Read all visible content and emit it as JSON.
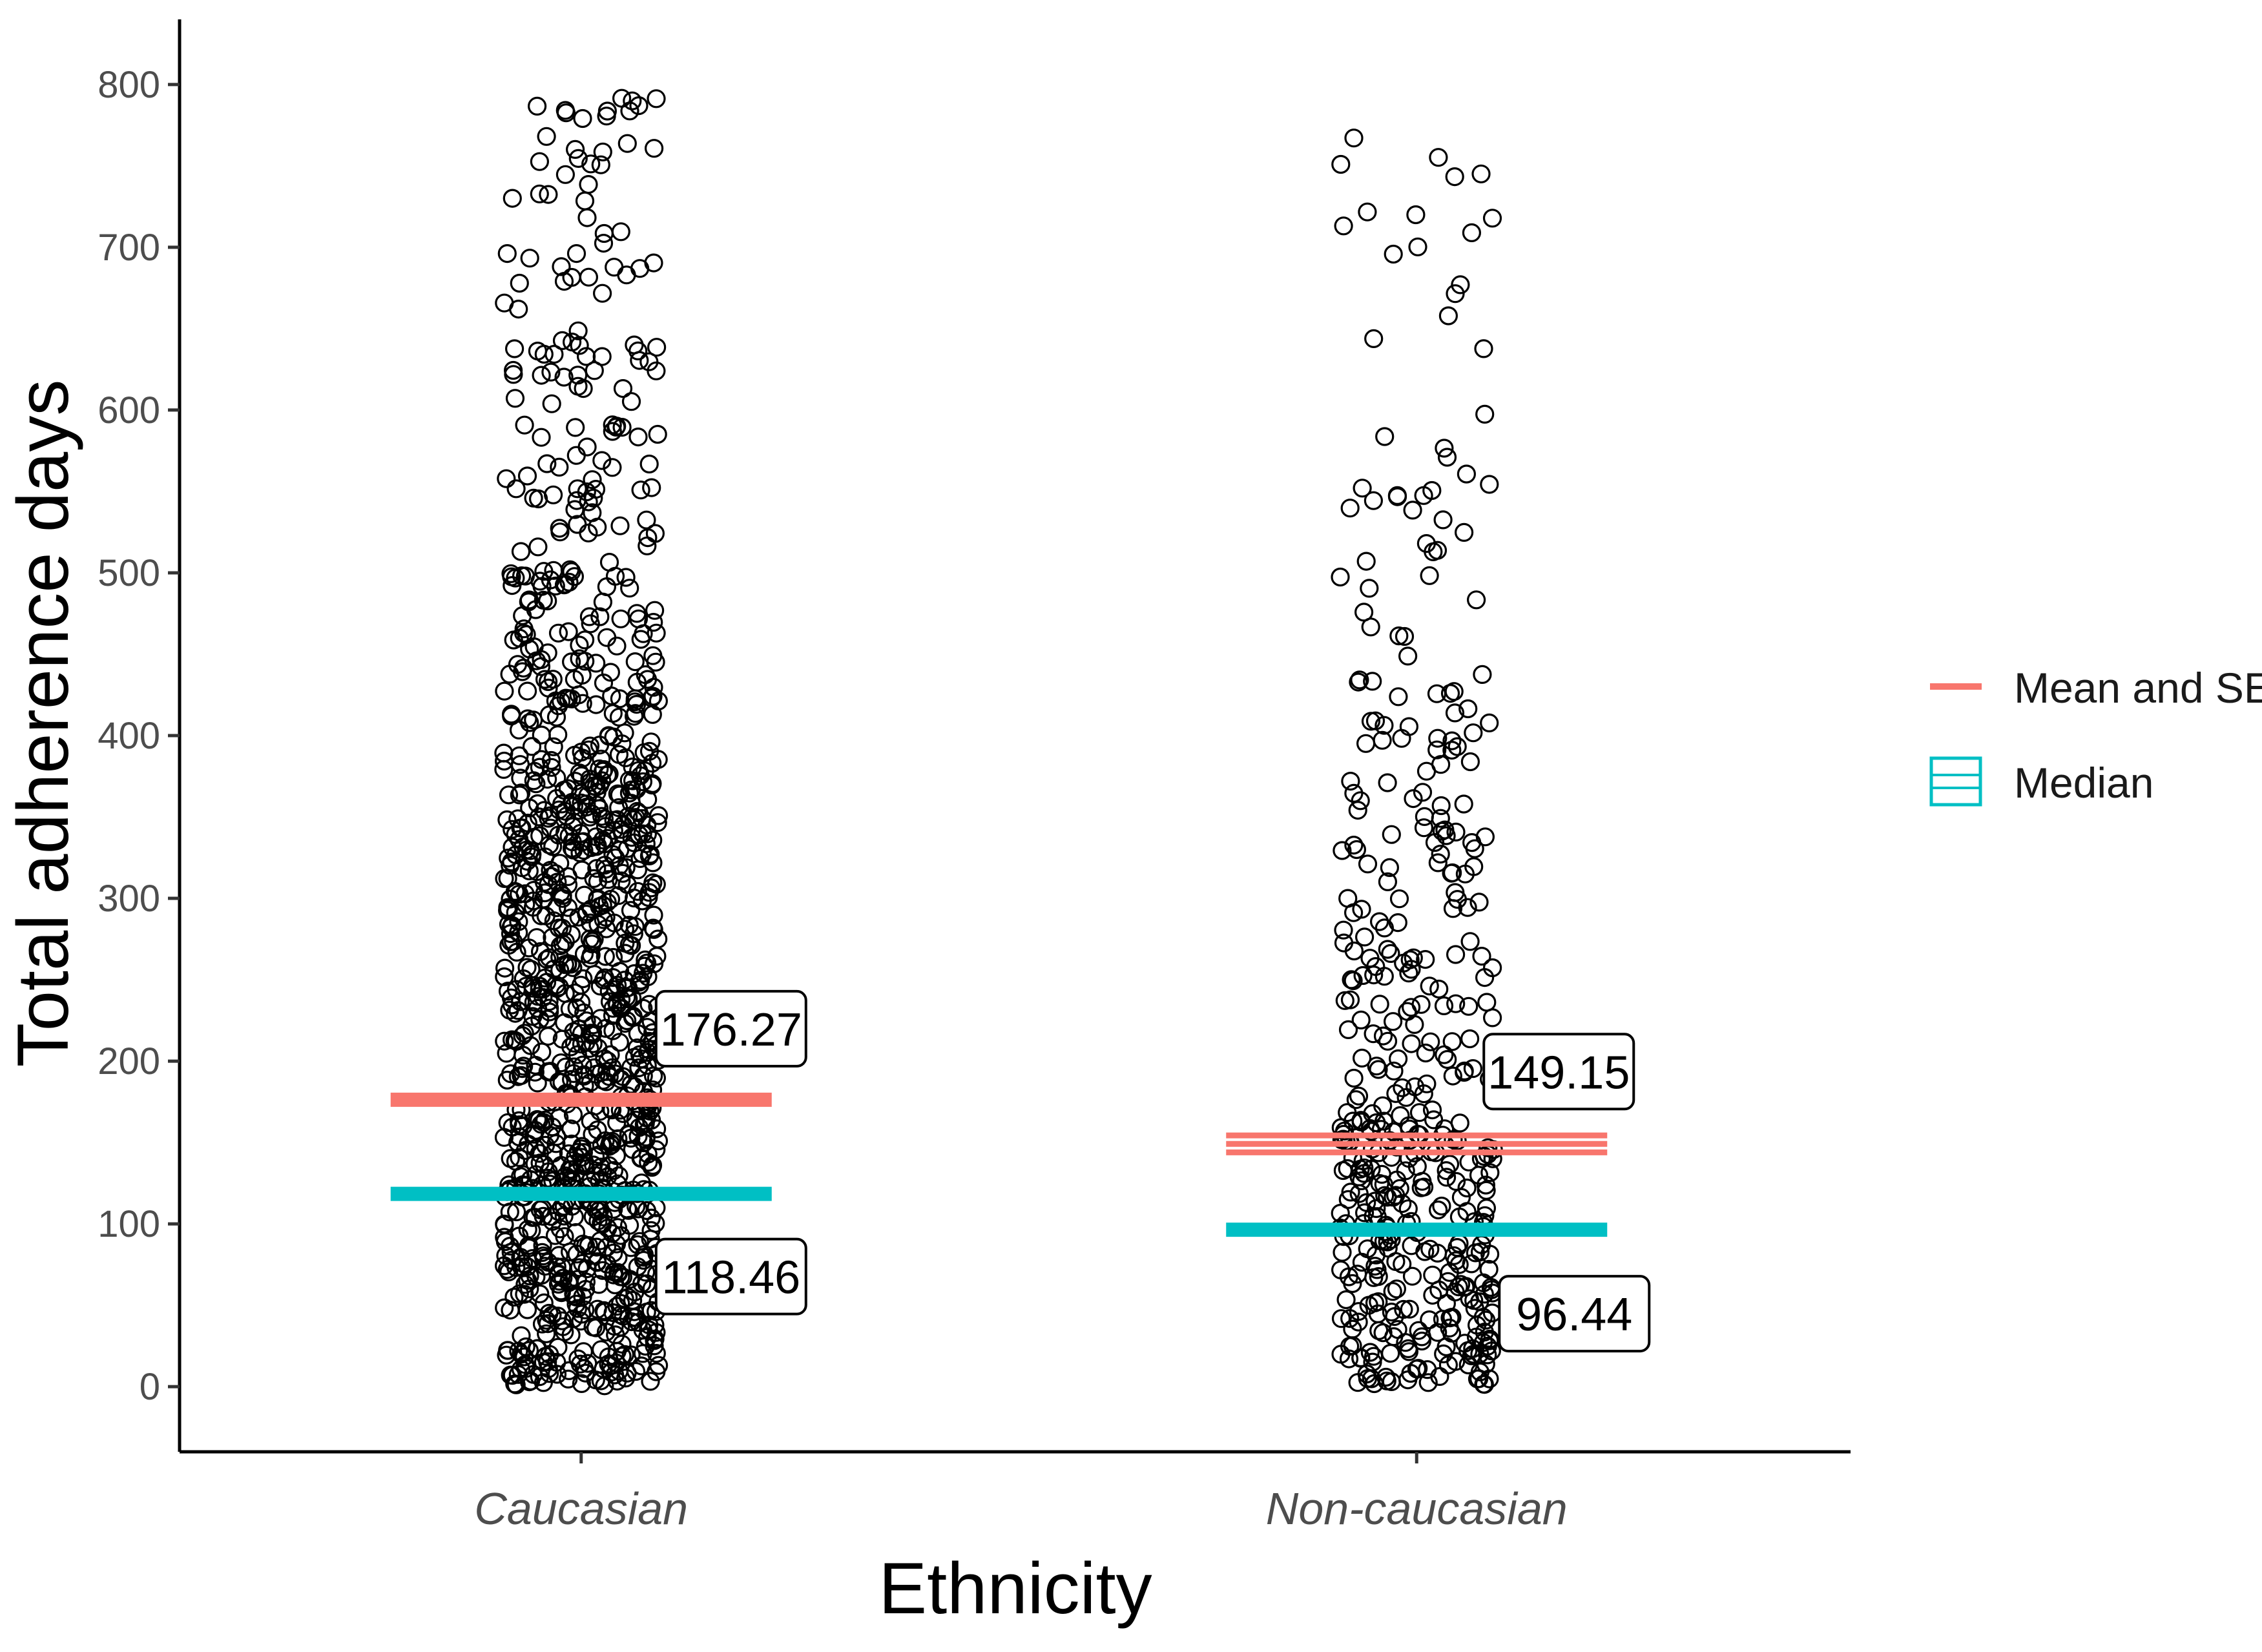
{
  "chart_data": {
    "type": "scatter",
    "subtype": "jitter strip plot with mean/SE and median lines",
    "xlabel": "Ethnicity",
    "ylabel": "Total adherence days",
    "categories": [
      "Caucasian",
      "Non-caucasian"
    ],
    "ylim": [
      -40,
      840
    ],
    "yticks": [
      0,
      100,
      200,
      300,
      400,
      500,
      600,
      700,
      800
    ],
    "grid": false,
    "legend": {
      "position": "right",
      "entries": [
        {
          "name": "Mean and SE",
          "color": "#F8766D"
        },
        {
          "name": "Median",
          "color": "#00BFC4"
        }
      ]
    },
    "series": [
      {
        "name": "Mean and SE",
        "values": [
          176.27,
          149.15
        ],
        "se": [
          1.2,
          5.2
        ],
        "color": "#F8766D"
      },
      {
        "name": "Median",
        "values": [
          118.46,
          96.44
        ],
        "color": "#00BFC4"
      }
    ],
    "data_labels": {
      "mean": [
        "176.27",
        "149.15"
      ],
      "median": [
        "118.46",
        "96.44"
      ]
    },
    "point_distribution": [
      {
        "category": "Caucasian",
        "range": [
          0,
          795
        ],
        "density_bands": [
          [
            0,
            380,
            900
          ],
          [
            380,
            500,
            140
          ],
          [
            500,
            650,
            80
          ],
          [
            650,
            795,
            45
          ]
        ]
      },
      {
        "category": "Non-caucasian",
        "range": [
          0,
          790
        ],
        "density_bands": [
          [
            0,
            170,
            260
          ],
          [
            170,
            430,
            140
          ],
          [
            430,
            560,
            28
          ],
          [
            560,
            790,
            22
          ]
        ]
      }
    ]
  }
}
